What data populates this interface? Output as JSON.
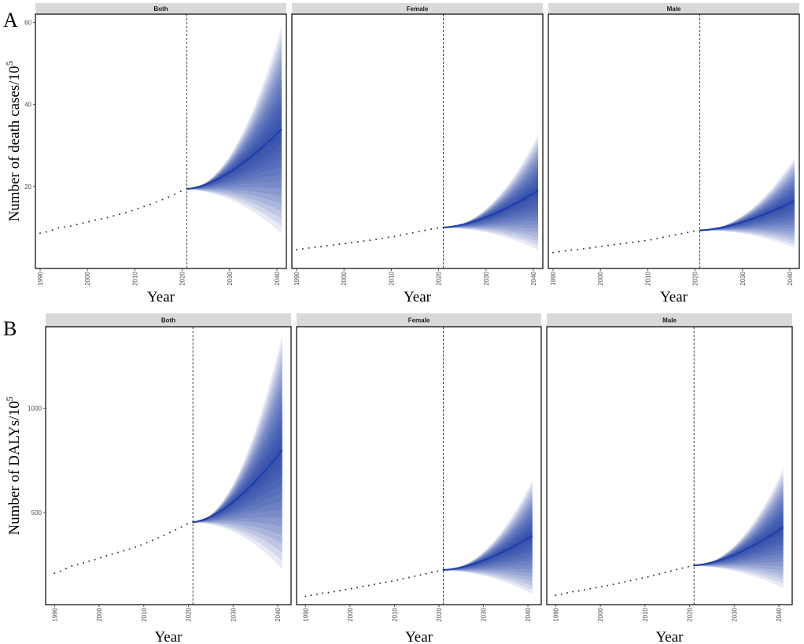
{
  "figure": {
    "panel_a_tag": "A",
    "panel_b_tag": "B",
    "facets": [
      "Both",
      "Female",
      "Male"
    ],
    "colors": {
      "fan": "#1a3aa0",
      "fan_center": "#1f3fae",
      "strip": "#d9d9d9",
      "dots": "#333333"
    }
  },
  "chart_data": [
    {
      "type": "area",
      "panel": "A",
      "ylabel": "Number of death cases/10",
      "ylabel_sup": "5",
      "xlabel": "Year",
      "xlim": [
        1989,
        2042
      ],
      "ylim": [
        0,
        62
      ],
      "x_ticks": [
        1990,
        2000,
        2010,
        2020,
        2030,
        2040
      ],
      "y_ticks": [
        20,
        40,
        60
      ],
      "projection_start": 2021,
      "facets": [
        {
          "name": "Both",
          "observed": [
            8.6,
            8.9,
            9.4,
            9.9,
            10.1,
            10.3,
            10.7,
            11.1,
            11.4,
            11.8,
            12.1,
            12.4,
            12.8,
            13.2,
            13.6,
            14.1,
            14.6,
            15.1,
            15.6,
            16.2,
            16.8,
            17.4,
            18.1,
            18.8,
            19.4
          ],
          "projection": {
            "mean_end": 34,
            "upper_end": 59,
            "lower_end": 8.5,
            "upper_mid": 32,
            "lower_mid": 18
          }
        },
        {
          "name": "Female",
          "observed": [
            4.6,
            4.8,
            5.0,
            5.2,
            5.3,
            5.5,
            5.7,
            5.9,
            6.1,
            6.3,
            6.5,
            6.7,
            6.9,
            7.1,
            7.3,
            7.6,
            7.8,
            8.1,
            8.4,
            8.7,
            9.0,
            9.3,
            9.6,
            9.8,
            10.0
          ],
          "projection": {
            "mean_end": 19,
            "upper_end": 32.5,
            "lower_end": 4.5,
            "upper_mid": 17,
            "lower_mid": 9.5
          }
        },
        {
          "name": "Male",
          "observed": [
            3.9,
            4.1,
            4.3,
            4.5,
            4.6,
            4.8,
            5.0,
            5.2,
            5.4,
            5.6,
            5.8,
            6.0,
            6.2,
            6.4,
            6.6,
            6.8,
            7.0,
            7.3,
            7.6,
            7.9,
            8.2,
            8.5,
            8.8,
            9.1,
            9.3
          ],
          "projection": {
            "mean_end": 16.5,
            "upper_end": 27,
            "lower_end": 5,
            "upper_mid": 14.5,
            "lower_mid": 9.2
          }
        }
      ]
    },
    {
      "type": "area",
      "panel": "B",
      "ylabel": "Number of DALYs/10",
      "ylabel_sup": "5",
      "xlabel": "Year",
      "xlim": [
        1988,
        2043
      ],
      "ylim": [
        60,
        1390
      ],
      "x_ticks": [
        1990,
        2000,
        2010,
        2020,
        2030,
        2040
      ],
      "y_ticks": [
        500,
        1000
      ],
      "projection_start": 2021,
      "facets": [
        {
          "name": "Both",
          "observed": [
            210,
            220,
            232,
            245,
            252,
            260,
            268,
            276,
            285,
            294,
            302,
            310,
            318,
            326,
            335,
            345,
            356,
            368,
            380,
            392,
            405,
            418,
            432,
            445,
            455
          ],
          "projection": {
            "mean_end": 800,
            "upper_end": 1350,
            "lower_end": 230,
            "upper_mid": 730,
            "lower_mid": 440
          }
        },
        {
          "name": "Female",
          "observed": [
            100,
            105,
            110,
            115,
            118,
            122,
            127,
            132,
            137,
            142,
            147,
            152,
            157,
            162,
            167,
            172,
            178,
            184,
            190,
            196,
            202,
            208,
            214,
            220,
            226
          ],
          "projection": {
            "mean_end": 390,
            "upper_end": 655,
            "lower_end": 110,
            "upper_mid": 350,
            "lower_mid": 210
          }
        },
        {
          "name": "Male",
          "observed": [
            105,
            110,
            116,
            122,
            126,
            131,
            136,
            141,
            146,
            151,
            157,
            163,
            169,
            175,
            181,
            187,
            193,
            200,
            207,
            214,
            221,
            228,
            235,
            242,
            248
          ],
          "projection": {
            "mean_end": 430,
            "upper_end": 710,
            "lower_end": 140,
            "upper_mid": 380,
            "lower_mid": 230
          }
        }
      ]
    }
  ]
}
